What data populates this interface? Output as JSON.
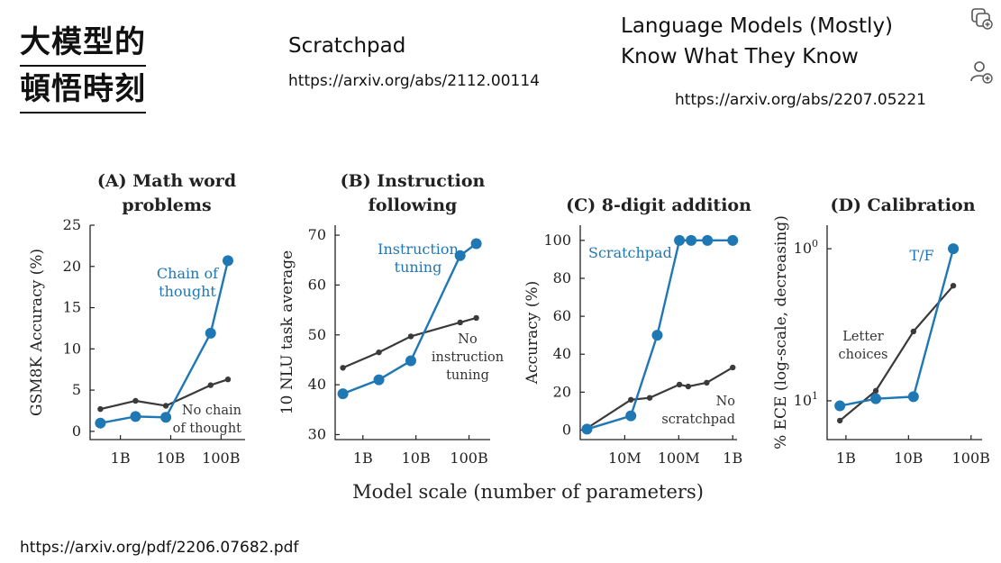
{
  "slide": {
    "title_lines": [
      "大模型的",
      "頓悟時刻"
    ],
    "scratchpad": {
      "title": "Scratchpad",
      "url": "https://arxiv.org/abs/2112.00114"
    },
    "lmknow": {
      "title_lines": [
        "Language Models (Mostly)",
        "Know What They Know"
      ],
      "url": "https://arxiv.org/abs/2207.05221"
    },
    "footer_url": "https://arxiv.org/pdf/2206.07682.pdf",
    "icons": [
      "copy-icon",
      "add-person-icon"
    ]
  },
  "figure": {
    "shared_xlabel": "Model scale (number of parameters)",
    "colors": {
      "blue": "#1f77b4",
      "gray": "#3a3a3a"
    }
  },
  "chart_data": [
    {
      "type": "line",
      "id": "A",
      "title_lines": [
        "(A) Math word",
        "problems"
      ],
      "ylabel": "GSM8K Accuracy (%)",
      "xscale": "log10",
      "xticks": [
        {
          "v": 1000000000.0,
          "label": "1B"
        },
        {
          "v": 10000000000.0,
          "label": "10B"
        },
        {
          "v": 100000000000.0,
          "label": "100B"
        }
      ],
      "yticks": [
        {
          "v": 0,
          "label": "0"
        },
        {
          "v": 5,
          "label": "5"
        },
        {
          "v": 10,
          "label": "10"
        },
        {
          "v": 15,
          "label": "15"
        },
        {
          "v": 20,
          "label": "20"
        },
        {
          "v": 25,
          "label": "25"
        }
      ],
      "xlim": [
        250000000.0,
        300000000000.0
      ],
      "ylim": [
        -1,
        25
      ],
      "series": [
        {
          "name": "Chain of thought",
          "color": "blue",
          "markers": true,
          "x": [
            400000000.0,
            2000000000.0,
            8000000000.0,
            62000000000.0,
            137000000000.0
          ],
          "y": [
            1.0,
            1.8,
            1.7,
            11.9,
            20.7
          ],
          "label_lines": [
            "Chain of",
            "thought"
          ]
        },
        {
          "name": "No chain of thought",
          "color": "gray",
          "markers": false,
          "x": [
            400000000.0,
            2000000000.0,
            8000000000.0,
            62000000000.0,
            137000000000.0
          ],
          "y": [
            2.7,
            3.7,
            3.1,
            5.6,
            6.3
          ],
          "label_lines": [
            "No chain",
            "of thought"
          ]
        }
      ]
    },
    {
      "type": "line",
      "id": "B",
      "title_lines": [
        "(B) Instruction",
        "following"
      ],
      "ylabel": "10 NLU task average",
      "xscale": "log10",
      "xticks": [
        {
          "v": 1000000000.0,
          "label": "1B"
        },
        {
          "v": 10000000000.0,
          "label": "10B"
        },
        {
          "v": 100000000000.0,
          "label": "100B"
        }
      ],
      "yticks": [
        {
          "v": 30,
          "label": "30"
        },
        {
          "v": 40,
          "label": "40"
        },
        {
          "v": 50,
          "label": "50"
        },
        {
          "v": 60,
          "label": "60"
        },
        {
          "v": 70,
          "label": "70"
        }
      ],
      "xlim": [
        300000000.0,
        250000000000.0
      ],
      "ylim": [
        29,
        72
      ],
      "series": [
        {
          "name": "Instruction tuning",
          "color": "blue",
          "markers": true,
          "x": [
            420000000.0,
            2000000000.0,
            8000000000.0,
            68000000000.0,
            137000000000.0
          ],
          "y": [
            38.2,
            41.0,
            44.8,
            65.9,
            68.3
          ],
          "label_lines": [
            "Instruction",
            "tuning"
          ]
        },
        {
          "name": "No instruction tuning",
          "color": "gray",
          "markers": false,
          "x": [
            420000000.0,
            2000000000.0,
            8000000000.0,
            68000000000.0,
            137000000000.0
          ],
          "y": [
            43.4,
            46.5,
            49.7,
            52.5,
            53.4
          ],
          "label_lines": [
            "No",
            "instruction",
            "tuning"
          ]
        }
      ]
    },
    {
      "type": "line",
      "id": "C",
      "title_lines": [
        "(C) 8-digit addition"
      ],
      "ylabel": "Accuracy (%)",
      "xscale": "log10",
      "xticks": [
        {
          "v": 10000000.0,
          "label": "10M"
        },
        {
          "v": 100000000.0,
          "label": "100M"
        },
        {
          "v": 1000000000.0,
          "label": "1B"
        }
      ],
      "yticks": [
        {
          "v": 0,
          "label": "0"
        },
        {
          "v": 20,
          "label": "20"
        },
        {
          "v": 40,
          "label": "40"
        },
        {
          "v": 60,
          "label": "60"
        },
        {
          "v": 80,
          "label": "80"
        },
        {
          "v": 100,
          "label": "100"
        }
      ],
      "xlim": [
        1500000.0,
        1200000000.0
      ],
      "ylim": [
        -5,
        108
      ],
      "series": [
        {
          "name": "Scratchpad",
          "color": "blue",
          "markers": true,
          "x": [
            2000000.0,
            13000000.0,
            40000000.0,
            103000000.0,
            170000000.0,
            340000000.0,
            1000000000.0
          ],
          "y": [
            0.5,
            7.5,
            50,
            100,
            100,
            100,
            100
          ],
          "label_lines": [
            "Scratchpad"
          ]
        },
        {
          "name": "No scratchpad",
          "color": "gray",
          "markers": false,
          "x": [
            2000000.0,
            13000000.0,
            29000000.0,
            103000000.0,
            150000000.0,
            330000000.0,
            1000000000.0
          ],
          "y": [
            1.0,
            16,
            17,
            24,
            23,
            25,
            33
          ],
          "label_lines": [
            "No",
            "scratchpad"
          ]
        }
      ]
    },
    {
      "type": "line",
      "id": "D",
      "title_lines": [
        "(D) Calibration"
      ],
      "ylabel": "% ECE (log-scale, decreasing)",
      "xscale": "log10",
      "yscale": "log10-inverted",
      "xticks": [
        {
          "v": 1000000000.0,
          "label": "1B"
        },
        {
          "v": 10000000000.0,
          "label": "10B"
        },
        {
          "v": 100000000000.0,
          "label": "100B"
        }
      ],
      "yticks": [
        {
          "v": 1,
          "label": "10^0"
        },
        {
          "v": 10,
          "label": "10^1"
        }
      ],
      "xlim": [
        500000000.0,
        150000000000.0
      ],
      "ylim": [
        0.7,
        18
      ],
      "series": [
        {
          "name": "T/F",
          "color": "blue",
          "markers": true,
          "x": [
            800000000.0,
            3000000000.0,
            12000000000.0,
            52000000000.0
          ],
          "y": [
            10.8,
            9.7,
            9.4,
            1.0
          ],
          "label_lines": [
            "T/F"
          ]
        },
        {
          "name": "Letter choices",
          "color": "gray",
          "markers": false,
          "x": [
            800000000.0,
            3000000000.0,
            12000000000.0,
            52000000000.0
          ],
          "y": [
            13.5,
            8.6,
            3.5,
            1.75
          ],
          "label_lines": [
            "Letter",
            "choices"
          ]
        }
      ]
    }
  ]
}
